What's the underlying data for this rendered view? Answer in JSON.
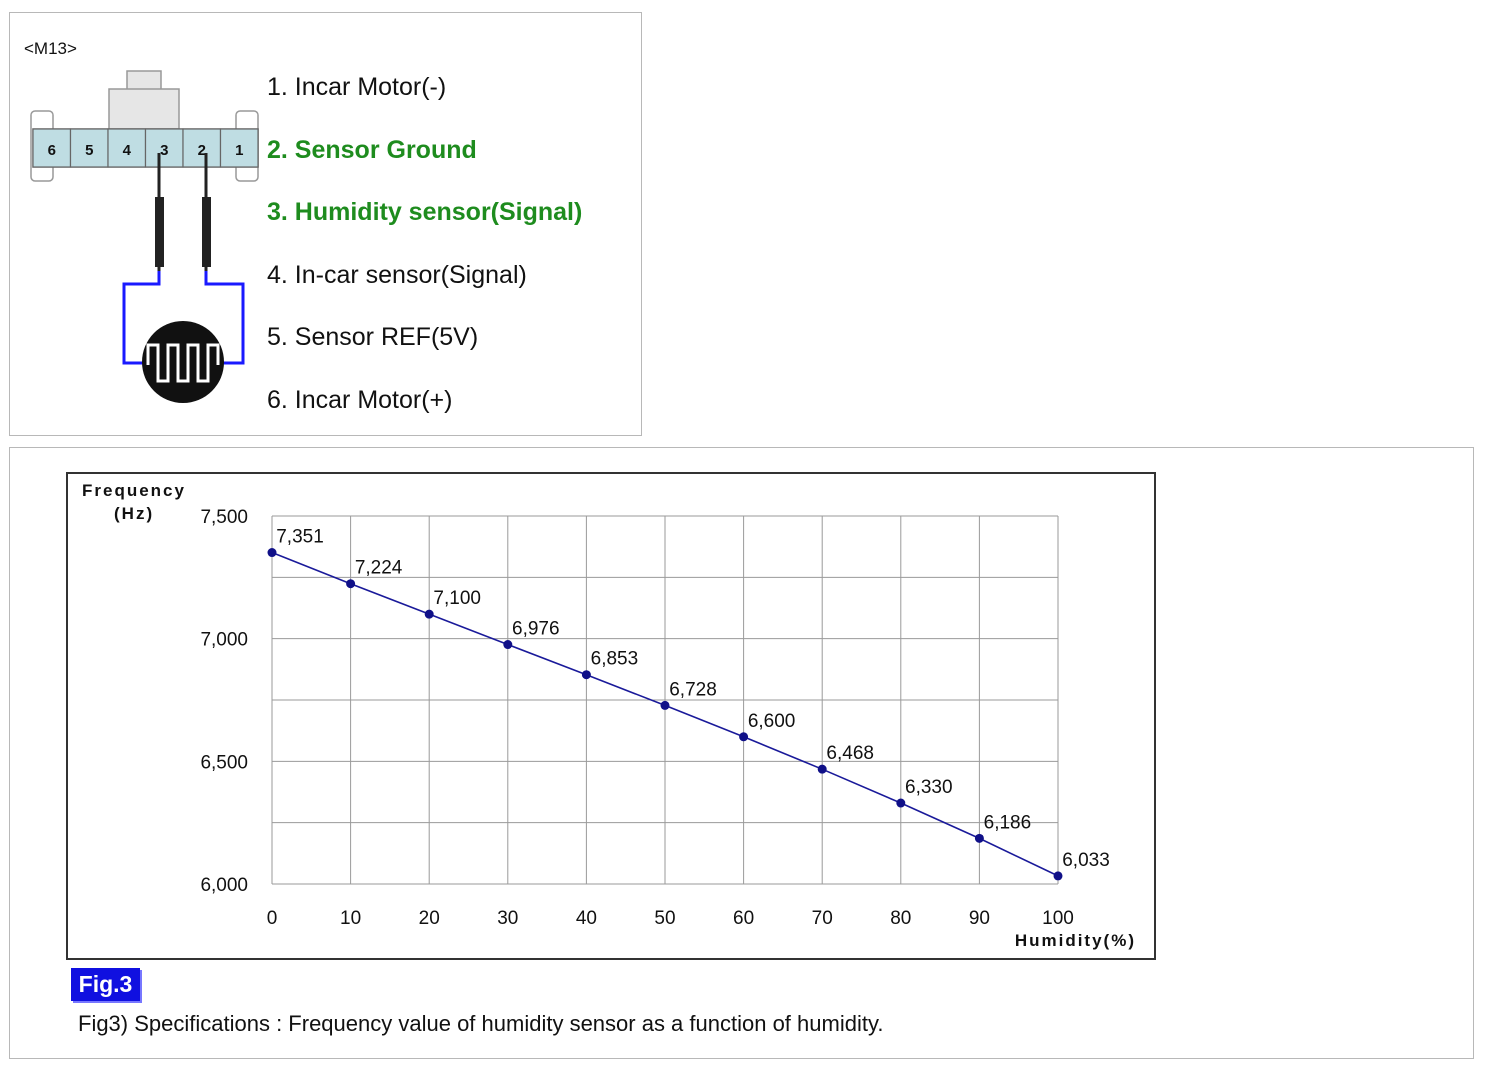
{
  "connector": {
    "id": "<M13>",
    "pin_numbers": [
      "6",
      "5",
      "4",
      "3",
      "2",
      "1"
    ],
    "pins": [
      {
        "label": "1. Incar Motor(-)",
        "highlight": false
      },
      {
        "label": "2. Sensor Ground",
        "highlight": true
      },
      {
        "label": "3. Humidity sensor(Signal)",
        "highlight": true
      },
      {
        "label": "4. In-car sensor(Signal)",
        "highlight": false
      },
      {
        "label": "5. Sensor REF(5V)",
        "highlight": false
      },
      {
        "label": "6. Incar Motor(+)",
        "highlight": false
      }
    ],
    "colors": {
      "highlight": "#1e8c1e",
      "connector_fill": "#bfdde3",
      "wire": "#1a1aff"
    }
  },
  "chart_data": {
    "type": "line",
    "ylabel_line1": "Frequency",
    "ylabel_line2": "(Hz)",
    "xlabel": "Humidity(%)",
    "x": [
      0,
      10,
      20,
      30,
      40,
      50,
      60,
      70,
      80,
      90,
      100
    ],
    "series": [
      {
        "values": [
          7351,
          7224,
          7100,
          6976,
          6853,
          6728,
          6600,
          6468,
          6330,
          6186,
          6033
        ]
      }
    ],
    "data_labels": [
      "7,351",
      "7,224",
      "7,100",
      "6,976",
      "6,853",
      "6,728",
      "6,600",
      "6,468",
      "6,330",
      "6,186",
      "6,033"
    ],
    "xlim": [
      0,
      100
    ],
    "ylim": [
      6000,
      7500
    ],
    "xticks": [
      0,
      10,
      20,
      30,
      40,
      50,
      60,
      70,
      80,
      90,
      100
    ],
    "yticks": [
      6000,
      6500,
      7000,
      7500
    ],
    "ytick_labels": [
      "6,000",
      "6,500",
      "7,000",
      "7,500"
    ],
    "grid": true,
    "line_color": "#1a1a9a",
    "marker_color": "#101088"
  },
  "figure": {
    "badge": "Fig.3",
    "caption": "Fig3) Specifications : Frequency value of humidity sensor as a function of humidity."
  }
}
